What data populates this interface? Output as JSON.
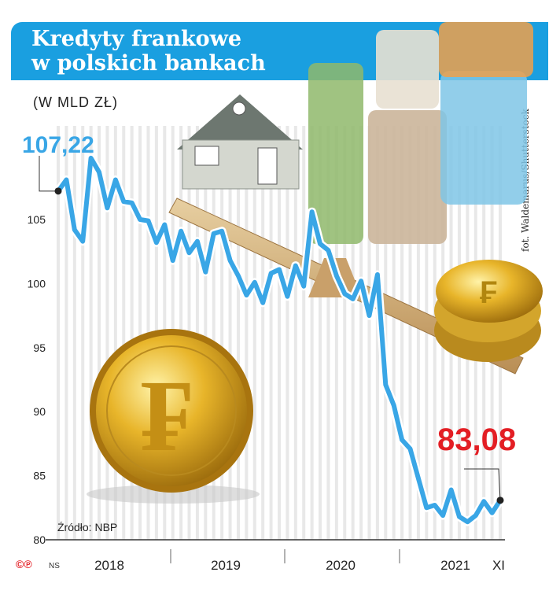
{
  "header": {
    "title_line1": "Kredyty frankowe",
    "title_line2": "w polskich bankach",
    "subtitle": "(W MLD ZŁ)",
    "photo_credit": "fot. Waldemarus/Shutterstock",
    "source": "Źródło: NBP",
    "logo": "©℗",
    "logo_suffix": "NS"
  },
  "colors": {
    "accent": "#1a9fe0",
    "line": "#39a6e6",
    "highlight": "#e31e24"
  },
  "chart_data": {
    "type": "line",
    "title": "Kredyty frankowe w polskich bankach",
    "ylabel": "(W MLD ZŁ)",
    "ylim": [
      80,
      110
    ],
    "yticks": [
      80,
      85,
      90,
      95,
      100,
      105
    ],
    "x_period_labels": [
      "2018",
      "2019",
      "2020",
      "2021",
      "XI"
    ],
    "grid": true,
    "annotations": [
      {
        "label": "107,22",
        "value": 107.22
      },
      {
        "label": "83,08",
        "value": 83.08
      }
    ],
    "series": [
      {
        "values": [
          107.22,
          108.1,
          104.2,
          103.3,
          109.8,
          108.7,
          105.9,
          108.1,
          106.4,
          106.3,
          105.0,
          104.9,
          103.2,
          104.6,
          101.8,
          104.1,
          102.4,
          103.3,
          100.9,
          103.9,
          104.1,
          101.8,
          100.6,
          99.1,
          100.1,
          98.5,
          100.8,
          101.1,
          99.0,
          101.4,
          99.8,
          105.6,
          103.1,
          102.6,
          100.6,
          99.2,
          98.8,
          100.2,
          97.5,
          100.7,
          92.1,
          90.5,
          87.8,
          87.1,
          84.8,
          82.5,
          82.7,
          81.9,
          83.9,
          81.8,
          81.4,
          81.9,
          83.0,
          82.1,
          83.08
        ]
      }
    ]
  }
}
